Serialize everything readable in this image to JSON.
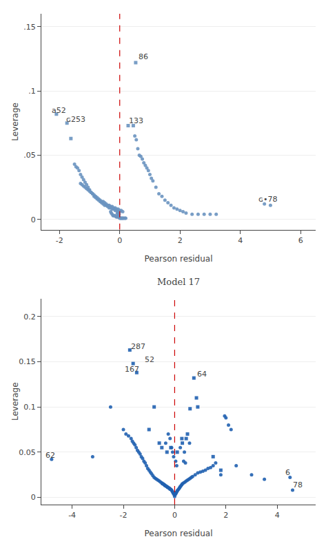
{
  "chart_data": [
    {
      "type": "scatter",
      "x_label": "Pearson residual",
      "y_label": "Leverage",
      "xlim": [
        -2.6,
        6.5
      ],
      "ylim": [
        -0.008,
        0.16
      ],
      "xticks": [
        -2,
        0,
        2,
        4,
        6
      ],
      "yticks": [
        0,
        {
          "value": 0.05,
          "label": ".05"
        },
        {
          "value": 0.1,
          "label": ".1"
        },
        {
          "value": 0.15,
          "label": ".15"
        }
      ],
      "grid": "y",
      "vlines": [
        {
          "x": 0,
          "color": "#cc0000",
          "line_style": "dashed"
        }
      ],
      "annotations": [
        {
          "text": "86",
          "x": 0.58,
          "y": 0.122
        },
        {
          "text": "a52",
          "x": -2.3,
          "y": 0.08
        },
        {
          "text": "ɢ253",
          "x": -1.82,
          "y": 0.073
        },
        {
          "text": "133",
          "x": 0.25,
          "y": 0.072
        },
        {
          "text": "ɢ•78",
          "x": 4.55,
          "y": 0.011
        }
      ],
      "series": [
        {
          "marker": "square",
          "color": "#6a93c0",
          "x": [
            -2.1,
            -1.75,
            -1.62,
            0.45,
            0.53,
            0.28
          ],
          "values": [
            0.082,
            0.075,
            0.063,
            0.073,
            0.122,
            0.073
          ]
        },
        {
          "marker": "circle",
          "color": "#6a93c0",
          "x": [
            -1.5,
            -1.45,
            -1.4,
            -1.35,
            -1.3,
            -1.25,
            -1.2,
            -1.15,
            -1.1,
            -1.05,
            -1.0,
            -0.95,
            -0.9,
            -0.85,
            -0.8,
            -0.75,
            -0.7,
            -0.65,
            -0.6,
            -0.55,
            -0.5,
            -0.45,
            -0.4,
            -0.35,
            -0.3,
            -0.25,
            -0.2,
            -0.15,
            -0.1,
            -0.05,
            0.0,
            -0.08,
            -0.06,
            -0.04,
            -0.02,
            0.5,
            0.55,
            0.6,
            0.65,
            0.7,
            0.75,
            0.8,
            0.85,
            0.9,
            0.95,
            1.0,
            1.05,
            1.1,
            1.2,
            1.3,
            1.4,
            1.5,
            1.6,
            1.7,
            1.8,
            1.9,
            2.0,
            2.1,
            2.2,
            2.4,
            2.6,
            2.8,
            3.0,
            3.2,
            4.8,
            5.0,
            -1.3,
            -1.25,
            -1.2,
            -1.15,
            -1.1,
            -1.05,
            -1.0,
            -0.95,
            -0.9,
            -0.85,
            -0.8,
            -0.75,
            -0.7,
            -0.65,
            -0.6,
            -0.55,
            -0.5,
            -0.45,
            -0.4,
            -0.35,
            -0.3,
            -0.25,
            -0.2,
            -0.15,
            -0.1,
            -0.05,
            0.0,
            0.05,
            0.1,
            -0.3,
            -0.28,
            -0.25,
            -0.22,
            -0.2,
            -0.18,
            -0.15,
            -0.12,
            -0.1,
            -0.08,
            -0.06,
            -0.04,
            -0.02,
            0.0,
            0.02,
            0.04,
            0.06,
            0.08,
            0.1,
            0.12,
            0.15,
            0.18,
            0.2
          ],
          "values": [
            0.043,
            0.041,
            0.04,
            0.038,
            0.035,
            0.033,
            0.031,
            0.029,
            0.027,
            0.025,
            0.023,
            0.021,
            0.02,
            0.018,
            0.017,
            0.016,
            0.015,
            0.014,
            0.013,
            0.012,
            0.011,
            0.011,
            0.01,
            0.009,
            0.009,
            0.008,
            0.008,
            0.007,
            0.007,
            0.006,
            0.006,
            0.005,
            0.005,
            0.004,
            0.004,
            0.065,
            0.062,
            0.055,
            0.05,
            0.049,
            0.047,
            0.044,
            0.042,
            0.04,
            0.038,
            0.035,
            0.032,
            0.03,
            0.025,
            0.02,
            0.018,
            0.015,
            0.013,
            0.011,
            0.009,
            0.008,
            0.007,
            0.006,
            0.005,
            0.004,
            0.004,
            0.004,
            0.004,
            0.004,
            0.012,
            0.011,
            0.028,
            0.027,
            0.026,
            0.025,
            0.024,
            0.023,
            0.022,
            0.021,
            0.02,
            0.019,
            0.018,
            0.017,
            0.016,
            0.015,
            0.014,
            0.014,
            0.013,
            0.012,
            0.011,
            0.011,
            0.01,
            0.01,
            0.009,
            0.009,
            0.008,
            0.008,
            0.007,
            0.007,
            0.006,
            0.006,
            0.005,
            0.004,
            0.003,
            0.003,
            0.003,
            0.003,
            0.002,
            0.002,
            0.002,
            0.002,
            0.002,
            0.002,
            0.001,
            0.001,
            0.001,
            0.001,
            0.001,
            0.001,
            0.001,
            0.001,
            0.001,
            0.001
          ]
        }
      ]
    },
    {
      "type": "scatter",
      "title": "Model 17",
      "x_label": "Pearson residual",
      "y_label": "Leverage",
      "xlim": [
        -5.2,
        5.5
      ],
      "ylim": [
        -0.008,
        0.22
      ],
      "xticks": [
        -4,
        -2,
        0,
        2,
        4
      ],
      "yticks": [
        0,
        0.05,
        0.1,
        0.15,
        0.2
      ],
      "grid": "y",
      "vlines": [
        {
          "x": 0,
          "color": "#cc0000",
          "line_style": "dashed"
        }
      ],
      "annotations": [
        {
          "text": "287",
          "x": -1.75,
          "y": 0.16
        },
        {
          "text": "52",
          "x": -1.22,
          "y": 0.146
        },
        {
          "text": "167",
          "x": -2.0,
          "y": 0.135
        },
        {
          "text": "64",
          "x": 0.82,
          "y": 0.13
        },
        {
          "text": "62",
          "x": -5.1,
          "y": 0.04
        },
        {
          "text": "6",
          "x": 4.25,
          "y": 0.021
        },
        {
          "text": "78",
          "x": 4.55,
          "y": 0.007
        }
      ],
      "series": [
        {
          "marker": "square",
          "color": "#2060b0",
          "x": [
            -1.75,
            -1.62,
            -1.48,
            0.75,
            0.28,
            0.5,
            -0.8,
            0.6,
            1.5,
            0.85,
            -0.5,
            0.3,
            -0.3,
            0.1,
            -0.15,
            0.45,
            -0.6,
            1.8,
            -1.0,
            0.9
          ],
          "values": [
            0.163,
            0.148,
            0.138,
            0.132,
            0.065,
            0.07,
            0.1,
            0.098,
            0.045,
            0.11,
            0.055,
            0.06,
            0.05,
            0.05,
            0.055,
            0.065,
            0.06,
            0.03,
            0.075,
            0.1
          ]
        },
        {
          "marker": "circle",
          "color": "#2060b0",
          "x": [
            -4.8,
            -3.2,
            -2.5,
            -2.0,
            -1.9,
            -1.8,
            -1.7,
            -1.65,
            -1.6,
            -1.55,
            -1.5,
            -1.45,
            -1.4,
            -1.35,
            -1.3,
            -1.25,
            -1.2,
            -1.15,
            -1.1,
            -1.05,
            -1.0,
            -0.95,
            -0.9,
            -0.85,
            -0.8,
            -0.75,
            -0.7,
            -0.65,
            -0.6,
            -0.55,
            -0.5,
            -0.48,
            -0.45,
            -0.42,
            -0.4,
            -0.38,
            -0.35,
            -0.32,
            -0.3,
            -0.28,
            -0.25,
            -0.22,
            -0.2,
            -0.18,
            -0.15,
            -0.12,
            -0.1,
            -0.08,
            -0.06,
            -0.04,
            -0.02,
            0.0,
            0.02,
            0.04,
            0.06,
            0.08,
            0.1,
            0.12,
            0.15,
            0.18,
            0.2,
            0.22,
            0.25,
            0.28,
            0.3,
            0.35,
            0.4,
            0.45,
            0.5,
            0.55,
            0.6,
            0.65,
            0.7,
            0.8,
            0.9,
            1.0,
            1.1,
            1.2,
            1.3,
            1.4,
            1.5,
            1.6,
            1.8,
            2.0,
            2.2,
            2.4,
            3.0,
            3.5,
            4.5,
            4.6,
            1.95,
            2.1,
            0.35,
            0.42,
            0.58,
            -0.12,
            -0.08,
            -0.04,
            0.04,
            0.08,
            -0.25,
            -0.18,
            -0.35,
            0.22,
            0.38
          ],
          "values": [
            0.042,
            0.045,
            0.1,
            0.075,
            0.07,
            0.068,
            0.065,
            0.062,
            0.06,
            0.058,
            0.055,
            0.052,
            0.05,
            0.048,
            0.045,
            0.043,
            0.04,
            0.038,
            0.035,
            0.032,
            0.03,
            0.028,
            0.026,
            0.024,
            0.022,
            0.021,
            0.02,
            0.019,
            0.018,
            0.017,
            0.016,
            0.015,
            0.015,
            0.014,
            0.014,
            0.013,
            0.013,
            0.012,
            0.012,
            0.011,
            0.011,
            0.01,
            0.01,
            0.009,
            0.009,
            0.008,
            0.007,
            0.006,
            0.005,
            0.004,
            0.003,
            0.001,
            0.003,
            0.004,
            0.005,
            0.006,
            0.007,
            0.008,
            0.009,
            0.01,
            0.011,
            0.012,
            0.013,
            0.014,
            0.015,
            0.016,
            0.017,
            0.018,
            0.019,
            0.02,
            0.021,
            0.022,
            0.023,
            0.025,
            0.027,
            0.028,
            0.029,
            0.03,
            0.032,
            0.033,
            0.035,
            0.038,
            0.025,
            0.088,
            0.075,
            0.035,
            0.025,
            0.02,
            0.022,
            0.008,
            0.09,
            0.08,
            0.04,
            0.038,
            0.06,
            0.055,
            0.05,
            0.045,
            0.04,
            0.035,
            0.07,
            0.065,
            0.06,
            0.055,
            0.05
          ]
        }
      ]
    }
  ]
}
